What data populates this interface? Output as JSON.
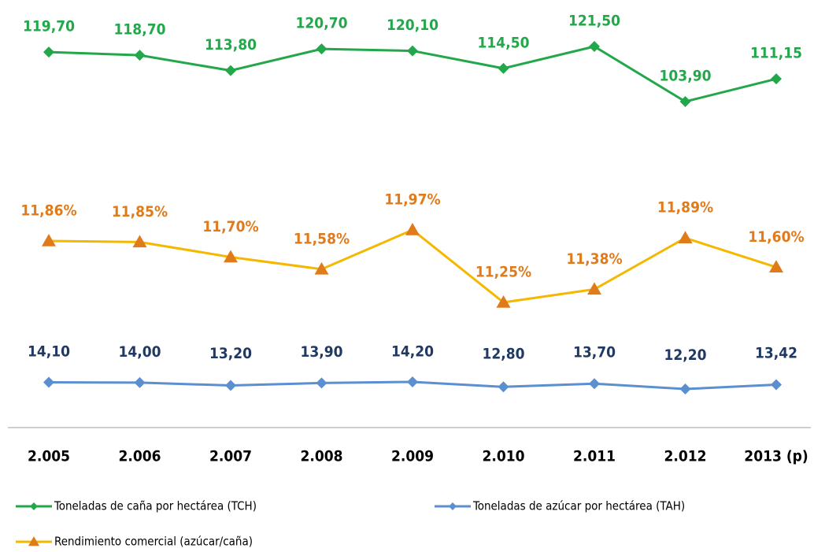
{
  "chart_data": {
    "type": "line",
    "categories": [
      "2.005",
      "2.006",
      "2.007",
      "2.008",
      "2.009",
      "2.010",
      "2.011",
      "2.012",
      "2013 (p)"
    ],
    "series": [
      {
        "name": "Toneladas de caña por hectárea (TCH)",
        "color": "#22a84a",
        "marker_color": "#22a84a",
        "label_color": "#22a84a",
        "marker": "diamond",
        "values": [
          119.7,
          118.7,
          113.8,
          120.7,
          120.1,
          114.5,
          121.5,
          103.9,
          111.15
        ],
        "value_labels": [
          "119,70",
          "118,70",
          "113,80",
          "120,70",
          "120,10",
          "114,50",
          "121,50",
          "103,90",
          "111,15"
        ]
      },
      {
        "name": "Toneladas de azúcar por hectárea (TAH)",
        "color": "#5b8fd0",
        "marker_color": "#5b8fd0",
        "label_color": "#1f3864",
        "marker": "diamond",
        "values": [
          14.1,
          14.0,
          13.2,
          13.9,
          14.2,
          12.8,
          13.7,
          12.2,
          13.42
        ],
        "value_labels": [
          "14,10",
          "14,00",
          "13,20",
          "13,90",
          "14,20",
          "12,80",
          "13,70",
          "12,20",
          "13,42"
        ]
      },
      {
        "name": "Rendimiento comercial (azúcar/caña)",
        "color": "#f5b800",
        "marker_color": "#e07b1c",
        "label_color": "#e07b1c",
        "marker": "triangle",
        "values": [
          11.86,
          11.85,
          11.7,
          11.58,
          11.97,
          11.25,
          11.38,
          11.89,
          11.6
        ],
        "value_labels": [
          "11,86%",
          "11,85%",
          "11,70%",
          "11,58%",
          "11,97%",
          "11,25%",
          "11,38%",
          "11,89%",
          "11,60%"
        ]
      }
    ]
  }
}
